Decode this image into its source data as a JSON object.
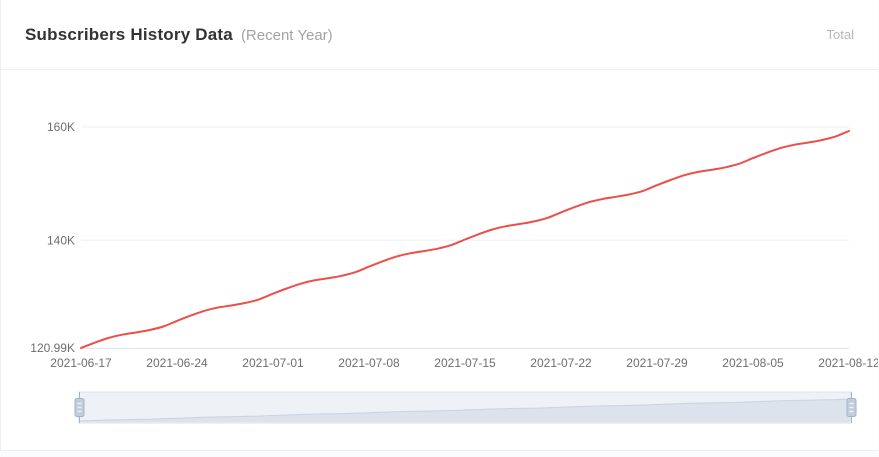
{
  "header": {
    "title": "Subscribers History Data",
    "subtitle": "(Recent Year)",
    "legend_total": "Total"
  },
  "colors": {
    "line": "#ec4f49",
    "grid": "#f0f0f0",
    "axis_line": "#e6e6e6",
    "axis_label": "#6e6e6e",
    "title_text": "#333333",
    "subtitle_text": "#a3a3a3",
    "legend_text": "#b8b8b8",
    "divider": "#efefef",
    "slider_bg": "#eef1f6",
    "slider_border": "#dde3ea",
    "slider_shadow_fill": "#dde3ec",
    "slider_shadow_line": "#c9d3df",
    "slider_handle_fill": "#c2cdda",
    "slider_handle_border": "#a4b2c5",
    "slider_handle_grip": "#eef2f7"
  },
  "chart_data": {
    "type": "line",
    "title": "Subscribers History Data (Recent Year)",
    "xlabel": "",
    "ylabel": "",
    "smooth": true,
    "grid": "horizontal-only",
    "legend_position": "top-right",
    "ylim": [
      120.99,
      166
    ],
    "y_ticks": [
      {
        "value": 120.99,
        "label": "120.99K"
      },
      {
        "value": 140,
        "label": "140K"
      },
      {
        "value": 160,
        "label": "160K"
      }
    ],
    "x_ticks": [
      {
        "index": 0,
        "label": "2021-06-17"
      },
      {
        "index": 7,
        "label": "2021-06-24"
      },
      {
        "index": 14,
        "label": "2021-07-01"
      },
      {
        "index": 21,
        "label": "2021-07-08"
      },
      {
        "index": 28,
        "label": "2021-07-15"
      },
      {
        "index": 35,
        "label": "2021-07-22"
      },
      {
        "index": 42,
        "label": "2021-07-29"
      },
      {
        "index": 49,
        "label": "2021-08-05"
      },
      {
        "index": 56,
        "label": "2021-08-12"
      }
    ],
    "x": [
      "2021-06-17",
      "2021-06-18",
      "2021-06-19",
      "2021-06-20",
      "2021-06-21",
      "2021-06-22",
      "2021-06-23",
      "2021-06-24",
      "2021-06-25",
      "2021-06-26",
      "2021-06-27",
      "2021-06-28",
      "2021-06-29",
      "2021-06-30",
      "2021-07-01",
      "2021-07-02",
      "2021-07-03",
      "2021-07-04",
      "2021-07-05",
      "2021-07-06",
      "2021-07-07",
      "2021-07-08",
      "2021-07-09",
      "2021-07-10",
      "2021-07-11",
      "2021-07-12",
      "2021-07-13",
      "2021-07-14",
      "2021-07-15",
      "2021-07-16",
      "2021-07-17",
      "2021-07-18",
      "2021-07-19",
      "2021-07-20",
      "2021-07-21",
      "2021-07-22",
      "2021-07-23",
      "2021-07-24",
      "2021-07-25",
      "2021-07-26",
      "2021-07-27",
      "2021-07-28",
      "2021-07-29",
      "2021-07-30",
      "2021-07-31",
      "2021-08-01",
      "2021-08-02",
      "2021-08-03",
      "2021-08-04",
      "2021-08-05",
      "2021-08-06",
      "2021-08-07",
      "2021-08-08",
      "2021-08-09",
      "2021-08-10",
      "2021-08-11",
      "2021-08-12"
    ],
    "series": [
      {
        "name": "Total",
        "unit": "K subscribers",
        "values": [
          120.99,
          121.92,
          122.76,
          123.34,
          123.73,
          124.16,
          124.79,
          125.78,
          126.71,
          127.55,
          128.13,
          128.51,
          128.95,
          129.58,
          130.57,
          131.5,
          132.33,
          132.92,
          133.3,
          133.74,
          134.37,
          135.35,
          136.29,
          137.12,
          137.71,
          138.09,
          138.52,
          139.16,
          140.14,
          141.08,
          141.91,
          142.49,
          142.88,
          143.31,
          143.95,
          144.93,
          145.86,
          146.7,
          147.28,
          147.67,
          148.1,
          148.73,
          149.72,
          150.65,
          151.49,
          152.07,
          152.45,
          152.89,
          153.52,
          154.51,
          155.44,
          156.27,
          156.86,
          157.24,
          157.68,
          158.31,
          159.29
        ]
      }
    ],
    "datazoom": {
      "start_index": 0,
      "end_index": 56
    }
  }
}
